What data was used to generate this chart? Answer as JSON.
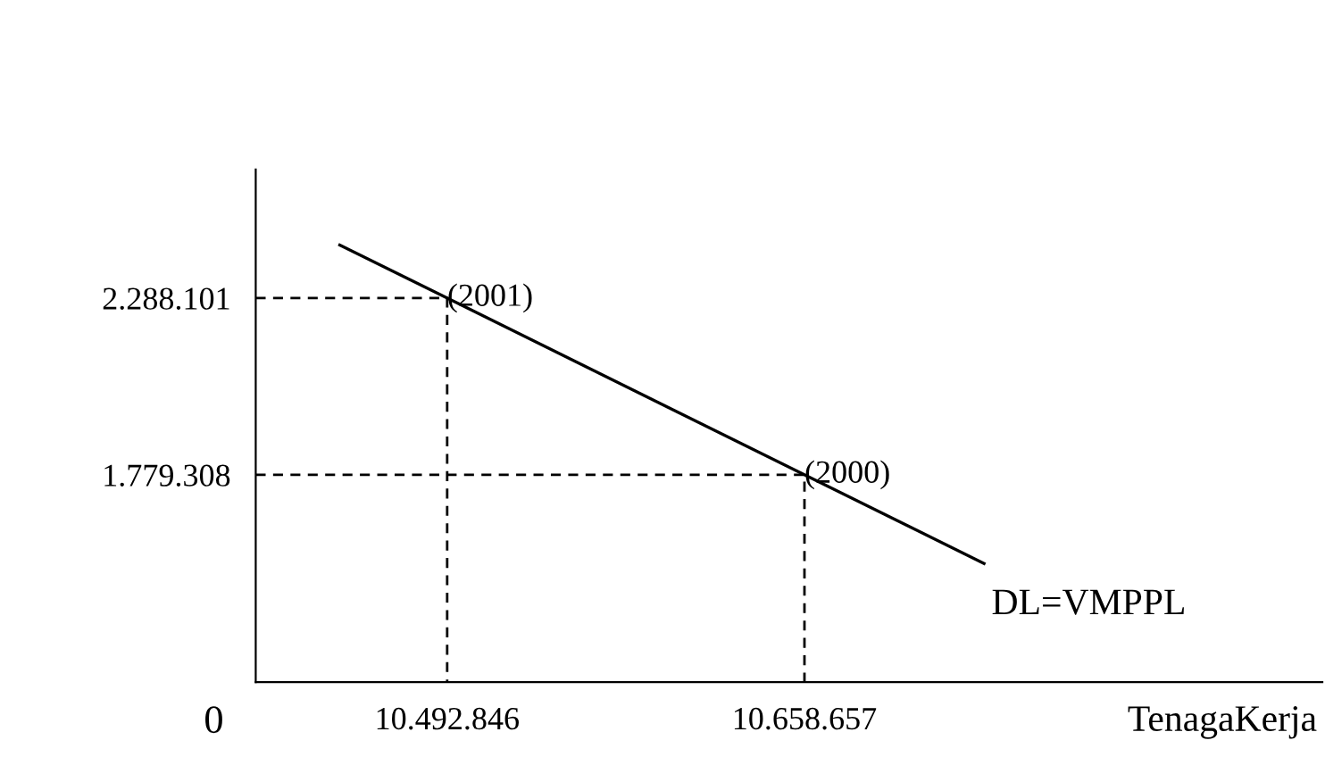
{
  "chart_data": {
    "type": "line",
    "xlabel": "TenagaKerja",
    "xlim": [
      10404000,
      10899000
    ],
    "ylim": [
      1183000,
      2658000
    ],
    "xticks": [
      {
        "value": 10492846,
        "label": "10.492.846"
      },
      {
        "value": 10658657,
        "label": "10.658.657"
      }
    ],
    "yticks": [
      {
        "value": 1779308,
        "label": "1.779.308"
      },
      {
        "value": 2288101,
        "label": "2.288.101"
      }
    ],
    "series": [
      {
        "color": "#000000",
        "x": [
          10443000,
          10742000
        ],
        "values": [
          2441000,
          1524000
        ],
        "line_style": "solid"
      },
      {
        "color": "#000000",
        "x": [
          10404000,
          10492846,
          10492846
        ],
        "values": [
          2288101,
          2288101,
          1183000
        ],
        "line_style": "dashed"
      },
      {
        "color": "#000000",
        "x": [
          10404000,
          10658657,
          10658657
        ],
        "values": [
          1779308,
          1779308,
          1183000
        ],
        "line_style": "dashed"
      }
    ],
    "annotations": [
      "0",
      {
        "text": "(2001)",
        "x": 10492846,
        "y": 2288101
      },
      {
        "text": "(2000)",
        "x": 10658657,
        "y": 1779308
      },
      "DL=VMPPL"
    ],
    "grid": false,
    "legend": false
  }
}
